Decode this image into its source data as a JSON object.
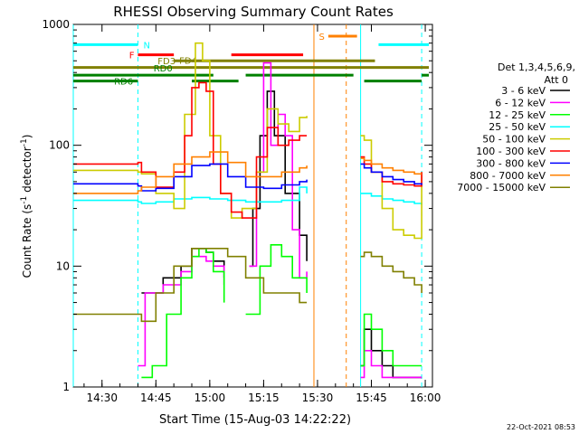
{
  "chart_data": {
    "type": "line",
    "title": "RHESSI Observing Summary Count Rates",
    "xlabel": "Start Time (15-Aug-03 14:22:22)",
    "ylabel_main": "Count Rate (s",
    "ylabel_sup": "-1",
    "ylabel_rest": " detector",
    "ylabel_end": ")",
    "yscale": "log",
    "ylim": [
      1,
      1000
    ],
    "xlim": [
      "14:22",
      "16:02"
    ],
    "x_ticks": [
      "14:30",
      "14:45",
      "15:00",
      "15:15",
      "15:30",
      "15:45",
      "16:00"
    ],
    "y_ticks": [
      "1",
      "10",
      "100",
      "1000"
    ],
    "legend_title": [
      "Det 1,3,4,5,6,9,",
      "Att 0"
    ],
    "legend_position": "right",
    "series": [
      {
        "name": "3 - 6 keV",
        "color": "#000000",
        "x": [
          "14:22",
          "14:40",
          "14:41",
          "14:47",
          "14:52",
          "14:55",
          "14:57",
          "14:59",
          "15:01",
          "15:04",
          "15:07",
          "15:11",
          "15:12",
          "15:14",
          "15:16",
          "15:18",
          "15:21",
          "15:25",
          "15:27"
        ],
        "values": [
          null,
          null,
          6,
          8,
          10,
          14,
          14,
          13,
          11,
          8,
          null,
          10,
          30,
          120,
          280,
          120,
          40,
          18,
          11
        ]
      },
      {
        "name": "6 - 12 keV",
        "color": "#ff00ff",
        "x": [
          "14:22",
          "14:38",
          "14:40",
          "14:42",
          "14:47",
          "14:52",
          "14:55",
          "14:57",
          "14:59",
          "15:01",
          "15:04",
          "15:08",
          "15:11",
          "15:13",
          "15:15",
          "15:17",
          "15:19",
          "15:21",
          "15:23",
          "15:25",
          "15:27"
        ],
        "values": [
          null,
          null,
          1.5,
          6,
          7,
          9,
          12,
          12,
          11,
          10,
          7,
          null,
          10,
          60,
          480,
          100,
          180,
          120,
          20,
          8,
          9
        ]
      },
      {
        "name": "12 - 25 keV",
        "color": "#00ff00",
        "x": [
          "14:22",
          "14:40",
          "14:41",
          "14:44",
          "14:48",
          "14:52",
          "14:55",
          "14:57",
          "14:59",
          "15:01",
          "15:04",
          "15:07",
          "15:10",
          "15:14",
          "15:17",
          "15:20",
          "15:23",
          "15:27"
        ],
        "values": [
          null,
          null,
          1.2,
          1.5,
          4,
          8,
          12,
          14,
          13,
          9,
          5,
          null,
          4,
          10,
          15,
          12,
          8,
          6
        ]
      },
      {
        "name": "25 - 50 keV",
        "color": "#00ffff",
        "x": [
          "14:22",
          "14:40",
          "14:41",
          "14:45",
          "14:50",
          "14:55",
          "15:00",
          "15:05",
          "15:10",
          "15:15",
          "15:20",
          "15:25",
          "15:27"
        ],
        "values": [
          35,
          34,
          33,
          34,
          36,
          37,
          36,
          35,
          34,
          34,
          35,
          45,
          40
        ]
      },
      {
        "name": "50 - 100 keV",
        "color": "#cccc00",
        "x": [
          "14:22",
          "14:40",
          "14:41",
          "14:45",
          "14:50",
          "14:53",
          "14:56",
          "14:58",
          "15:00",
          "15:03",
          "15:06",
          "15:09",
          "15:13",
          "15:16",
          "15:19",
          "15:22",
          "15:25",
          "15:27"
        ],
        "values": [
          62,
          60,
          58,
          40,
          30,
          180,
          700,
          500,
          120,
          40,
          25,
          30,
          60,
          200,
          150,
          130,
          170,
          175
        ]
      },
      {
        "name": "100 - 300 keV",
        "color": "#ff0000",
        "x": [
          "14:22",
          "14:40",
          "14:41",
          "14:45",
          "14:50",
          "14:53",
          "14:55",
          "14:57",
          "14:59",
          "15:01",
          "15:03",
          "15:06",
          "15:09",
          "15:13",
          "15:16",
          "15:19",
          "15:22",
          "15:25",
          "15:27"
        ],
        "values": [
          70,
          72,
          60,
          45,
          60,
          120,
          300,
          330,
          280,
          70,
          40,
          28,
          25,
          80,
          140,
          100,
          110,
          120,
          120
        ]
      },
      {
        "name": "300 - 800 keV",
        "color": "#0000ff",
        "x": [
          "14:22",
          "14:40",
          "14:41",
          "14:45",
          "14:50",
          "14:55",
          "15:00",
          "15:05",
          "15:10",
          "15:15",
          "15:20",
          "15:25",
          "15:27"
        ],
        "values": [
          48,
          46,
          42,
          44,
          55,
          68,
          70,
          55,
          45,
          44,
          47,
          50,
          52
        ]
      },
      {
        "name": "800 - 7000 keV",
        "color": "#ff8000",
        "x": [
          "14:22",
          "14:40",
          "14:41",
          "14:45",
          "14:50",
          "14:55",
          "15:00",
          "15:05",
          "15:10",
          "15:15",
          "15:20",
          "15:25",
          "15:27"
        ],
        "values": [
          40,
          42,
          45,
          55,
          70,
          80,
          88,
          72,
          55,
          55,
          60,
          65,
          68
        ]
      },
      {
        "name": "7000 - 15000 keV",
        "color": "#808000",
        "x": [
          "14:22",
          "14:40",
          "14:41",
          "14:45",
          "14:50",
          "14:55",
          "15:00",
          "15:05",
          "15:10",
          "15:15",
          "15:20",
          "15:25",
          "15:27"
        ],
        "values": [
          4,
          4,
          3.5,
          6,
          10,
          14,
          14,
          12,
          8,
          6,
          6,
          5,
          5
        ]
      }
    ],
    "segment2": {
      "x": [
        "15:42",
        "15:43",
        "15:45",
        "15:48",
        "15:51",
        "15:54",
        "15:57",
        "15:59"
      ],
      "series": {
        "3 - 6 keV": [
          1.5,
          3,
          2,
          1.5,
          1.2,
          1.2,
          1.2,
          1.2
        ],
        "6 - 12 keV": [
          1.2,
          2,
          1.5,
          1.2,
          1.2,
          1.2,
          1.2,
          1.2
        ],
        "12 - 25 keV": [
          1.5,
          4,
          3,
          2,
          1.5,
          1.5,
          1.5,
          1.5
        ],
        "25 - 50 keV": [
          40,
          40,
          38,
          36,
          35,
          34,
          33,
          32
        ],
        "50 - 100 keV": [
          120,
          110,
          60,
          30,
          20,
          18,
          17,
          60
        ],
        "100 - 300 keV": [
          80,
          70,
          60,
          50,
          48,
          47,
          46,
          60
        ],
        "300 - 800 keV": [
          70,
          65,
          60,
          55,
          52,
          50,
          48,
          47
        ],
        "800 - 7000 keV": [
          78,
          75,
          70,
          65,
          62,
          60,
          58,
          58
        ],
        "7000 - 15000 keV": [
          12,
          13,
          12,
          10,
          9,
          8,
          7,
          6
        ]
      }
    },
    "flags": [
      {
        "label": "N",
        "color": "#00ffff",
        "level": 680,
        "spans": [
          [
            "14:22",
            "14:40"
          ],
          [
            "15:47",
            "16:01"
          ]
        ]
      },
      {
        "label": "F",
        "color": "#ff0000",
        "level": 560,
        "spans": [
          [
            "14:40",
            "14:50"
          ],
          [
            "15:06",
            "15:26"
          ]
        ]
      },
      {
        "label": "FD3",
        "color": "#808000",
        "level": 500,
        "spans": [
          [
            "14:50",
            "15:46"
          ]
        ]
      },
      {
        "label": "FD4",
        "color": "#808000",
        "level": 440,
        "spans": [
          [
            "14:22",
            "15:46"
          ],
          [
            "15:46",
            "16:01"
          ]
        ]
      },
      {
        "label": "RD0",
        "color": "#008000",
        "level": 380,
        "spans": [
          [
            "14:22",
            "15:01"
          ],
          [
            "15:10",
            "15:40"
          ],
          [
            "15:59",
            "16:01"
          ]
        ]
      },
      {
        "label": "RD6",
        "color": "#008000",
        "level": 340,
        "spans": [
          [
            "14:22",
            "14:40"
          ],
          [
            "14:55",
            "15:08"
          ],
          [
            "15:43",
            "15:59"
          ]
        ]
      },
      {
        "label": "S",
        "color": "#ff8000",
        "level": 800,
        "spans": [
          [
            "15:33",
            "15:41"
          ]
        ]
      }
    ],
    "vlines": [
      {
        "at": "14:22",
        "color": "#00ffff",
        "style": "solid"
      },
      {
        "at": "14:40",
        "color": "#00ffff",
        "style": "dashed"
      },
      {
        "at": "15:29",
        "color": "#ff8000",
        "style": "solid"
      },
      {
        "at": "15:38",
        "color": "#ff8000",
        "style": "dashed"
      },
      {
        "at": "15:42",
        "color": "#00ffff",
        "style": "solid"
      },
      {
        "at": "15:59",
        "color": "#00ffff",
        "style": "dashed"
      }
    ]
  },
  "footer": {
    "timestamp": "22-Oct-2021 08:53"
  }
}
